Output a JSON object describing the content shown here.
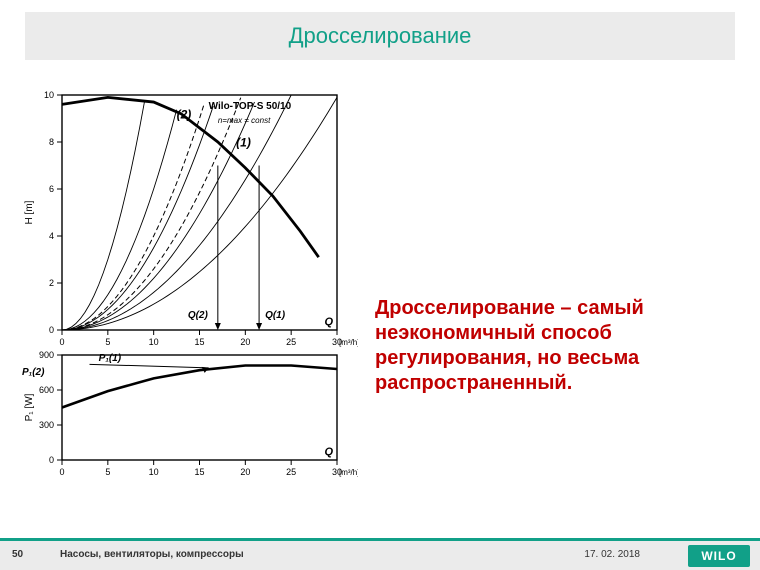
{
  "title": "Дросселирование",
  "body_text": "Дросселирование – самый неэкономичный способ регулирования, но весьма распространенный.",
  "footer": {
    "slide_number": "50",
    "text": "Насосы, вентиляторы, компрессоры",
    "date": "17. 02. 2018",
    "logo_text": "WILO"
  },
  "chart": {
    "upper": {
      "pump_label": "Wilo-TOP-S 50/10",
      "sub_label": "n=max = const",
      "ylabel": "H [m]",
      "xlabel": "Q",
      "xunit": "[m³/h]",
      "ylim": [
        0,
        10
      ],
      "ytick_step": 2,
      "xlim": [
        0,
        30
      ],
      "xtick_step": 5,
      "grid_color": "#000000",
      "bg": "#ffffff",
      "pump_curve_pts": [
        [
          0,
          9.6
        ],
        [
          5,
          9.9
        ],
        [
          10,
          9.7
        ],
        [
          13,
          9.2
        ],
        [
          17,
          8.0
        ],
        [
          20,
          6.9
        ],
        [
          23,
          5.7
        ],
        [
          26,
          4.2
        ],
        [
          28,
          3.1
        ]
      ],
      "pump_line_width": 2.8,
      "system_curves": [
        {
          "k": 0.011,
          "max_x": 30
        },
        {
          "k": 0.016,
          "max_x": 25
        },
        {
          "k": 0.022,
          "max_x": 21
        },
        {
          "k": 0.035,
          "max_x": 17
        },
        {
          "k": 0.06,
          "max_x": 13
        },
        {
          "k": 0.12,
          "max_x": 9
        }
      ],
      "dashed_curves_k": [
        0.026,
        0.04
      ],
      "system_line_width": 0.9,
      "q1_x": 21.5,
      "q2_x": 17.0,
      "marker_labels": {
        "q1": "Q(1)",
        "q2": "Q(2)",
        "l1": "(1)",
        "l2": "(2)"
      }
    },
    "lower": {
      "ylabel": "P₁ [W]",
      "xlabel": "Q",
      "xunit": "[m³/h]",
      "ylim": [
        0,
        900
      ],
      "yticks": [
        0,
        300,
        600,
        900
      ],
      "xlim": [
        0,
        30
      ],
      "xtick_step": 5,
      "curve_pts": [
        [
          0,
          450
        ],
        [
          5,
          590
        ],
        [
          10,
          700
        ],
        [
          15,
          770
        ],
        [
          20,
          810
        ],
        [
          25,
          810
        ],
        [
          30,
          780
        ]
      ],
      "line_width": 2.6,
      "p1_label": "P₁(1)",
      "p2_label": "P₁(2)"
    }
  },
  "colors": {
    "accent": "#11a088",
    "body": "#c00000",
    "axis": "#000000"
  }
}
